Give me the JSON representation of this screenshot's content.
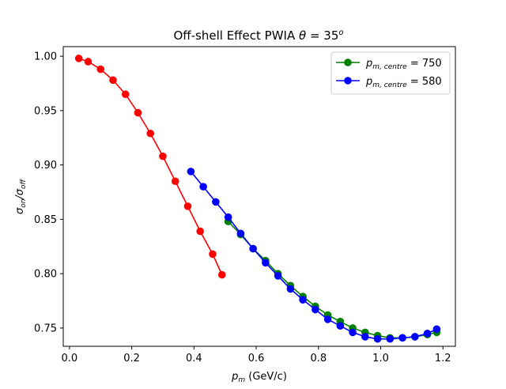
{
  "chart_data": {
    "type": "line",
    "title": "Off-shell Effect PWIA θ = 35°",
    "title_parts": {
      "text": "Off-shell Effect PWIA ",
      "theta": "θ",
      "equals": " = 35",
      "sup": "o"
    },
    "xlabel": "p_m (GeV/c)",
    "xlabel_parts": {
      "p": "p",
      "sub": "m",
      "rest": " (GeV/c)"
    },
    "ylabel": "σ_on/σ_off",
    "ylabel_parts": {
      "s1": "σ",
      "sub1": "on",
      "slash": "/σ",
      "sub2": "off"
    },
    "xlim": [
      -0.02,
      1.24
    ],
    "ylim": [
      0.7332,
      1.0088
    ],
    "xticks": [
      0.0,
      0.2,
      0.4,
      0.6,
      0.8,
      1.0,
      1.2
    ],
    "xtick_labels": [
      "0.0",
      "0.2",
      "0.4",
      "0.6",
      "0.8",
      "1.0",
      "1.2"
    ],
    "yticks": [
      0.75,
      0.8,
      0.85,
      0.9,
      0.95,
      1.0
    ],
    "ytick_labels": [
      "0.75",
      "0.80",
      "0.85",
      "0.90",
      "0.95",
      "1.00"
    ],
    "grid": false,
    "legend_position": "top-right",
    "series": [
      {
        "name": "p_m,centre = 750",
        "legend_parts": {
          "p": "p",
          "sub": "m, centre",
          "eq": " = 750"
        },
        "color": "#008000",
        "in_legend": true,
        "x": [
          0.51,
          0.55,
          0.59,
          0.63,
          0.67,
          0.71,
          0.75,
          0.79,
          0.83,
          0.87,
          0.91,
          0.95,
          0.99,
          1.03,
          1.07,
          1.11,
          1.15,
          1.18
        ],
        "y": [
          0.848,
          0.836,
          0.823,
          0.812,
          0.8,
          0.789,
          0.779,
          0.77,
          0.762,
          0.756,
          0.75,
          0.746,
          0.743,
          0.741,
          0.741,
          0.742,
          0.744,
          0.746
        ]
      },
      {
        "name": "p_m,centre = 580",
        "legend_parts": {
          "p": "p",
          "sub": "m, centre",
          "eq": " = 580"
        },
        "color": "#0000ff",
        "in_legend": true,
        "x": [
          0.39,
          0.43,
          0.47,
          0.51,
          0.55,
          0.59,
          0.63,
          0.67,
          0.71,
          0.75,
          0.79,
          0.83,
          0.87,
          0.91,
          0.95,
          0.99,
          1.03,
          1.07,
          1.11,
          1.15,
          1.18
        ],
        "y": [
          0.894,
          0.88,
          0.866,
          0.852,
          0.837,
          0.823,
          0.81,
          0.798,
          0.786,
          0.776,
          0.767,
          0.758,
          0.752,
          0.746,
          0.742,
          0.74,
          0.74,
          0.741,
          0.742,
          0.745,
          0.749
        ]
      },
      {
        "name": "",
        "color": "#ff0000",
        "in_legend": false,
        "x": [
          0.03,
          0.06,
          0.1,
          0.14,
          0.18,
          0.22,
          0.26,
          0.3,
          0.34,
          0.38,
          0.42,
          0.46,
          0.49
        ],
        "y": [
          0.998,
          0.995,
          0.988,
          0.978,
          0.965,
          0.948,
          0.929,
          0.908,
          0.885,
          0.862,
          0.839,
          0.818,
          0.799
        ]
      }
    ]
  }
}
